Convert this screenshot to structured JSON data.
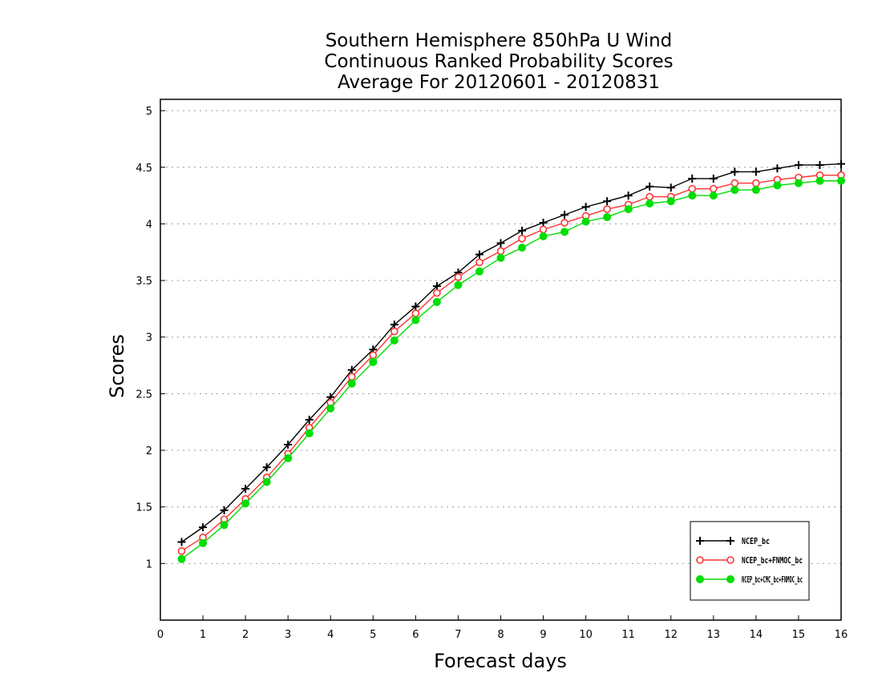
{
  "chart_data": {
    "type": "line",
    "title_lines": [
      "Southern Hemisphere 850hPa U Wind",
      "Continuous Ranked Probability Scores",
      "Average For 20120601 - 20120831"
    ],
    "xlabel": "Forecast days",
    "ylabel": "Scores",
    "xlim": [
      0,
      16
    ],
    "ylim": [
      0.5,
      5.1
    ],
    "xticks": [
      0,
      1,
      2,
      3,
      4,
      5,
      6,
      7,
      8,
      9,
      10,
      11,
      12,
      13,
      14,
      15,
      16
    ],
    "yticks": [
      1,
      1.5,
      2,
      2.5,
      3,
      3.5,
      4,
      4.5,
      5
    ],
    "grid": "horizontal-dotted",
    "legend_position": "bottom-right",
    "x": [
      0.5,
      1,
      1.5,
      2,
      2.5,
      3,
      3.5,
      4,
      4.5,
      5,
      5.5,
      6,
      6.5,
      7,
      7.5,
      8,
      8.5,
      9,
      9.5,
      10,
      10.5,
      11,
      11.5,
      12,
      12.5,
      13,
      13.5,
      14,
      14.5,
      15,
      15.5,
      16
    ],
    "series": [
      {
        "name": "NCEP_bc",
        "color": "#000000",
        "marker": "plus",
        "values": [
          1.19,
          1.32,
          1.47,
          1.66,
          1.85,
          2.05,
          2.27,
          2.47,
          2.71,
          2.89,
          3.11,
          3.27,
          3.45,
          3.57,
          3.73,
          3.83,
          3.94,
          4.01,
          4.08,
          4.15,
          4.2,
          4.25,
          4.33,
          4.32,
          4.4,
          4.4,
          4.46,
          4.46,
          4.49,
          4.52,
          4.52,
          4.53
        ]
      },
      {
        "name": "NCEP_bc+FNMOC_bc",
        "color": "#ff3333",
        "marker": "open-circle",
        "values": [
          1.11,
          1.23,
          1.39,
          1.57,
          1.76,
          1.97,
          2.2,
          2.42,
          2.65,
          2.84,
          3.05,
          3.21,
          3.39,
          3.53,
          3.66,
          3.76,
          3.87,
          3.95,
          4.01,
          4.07,
          4.13,
          4.17,
          4.24,
          4.24,
          4.31,
          4.31,
          4.36,
          4.36,
          4.39,
          4.41,
          4.43,
          4.43
        ]
      },
      {
        "name": "NCEP_bc+CMC_bc+FNMOC_bc",
        "color": "#00dd00",
        "marker": "filled-circle",
        "values": [
          1.04,
          1.18,
          1.34,
          1.53,
          1.72,
          1.93,
          2.15,
          2.37,
          2.59,
          2.78,
          2.97,
          3.15,
          3.31,
          3.46,
          3.58,
          3.7,
          3.79,
          3.89,
          3.93,
          4.02,
          4.06,
          4.13,
          4.18,
          4.2,
          4.25,
          4.25,
          4.3,
          4.3,
          4.34,
          4.36,
          4.38,
          4.38
        ]
      }
    ]
  }
}
